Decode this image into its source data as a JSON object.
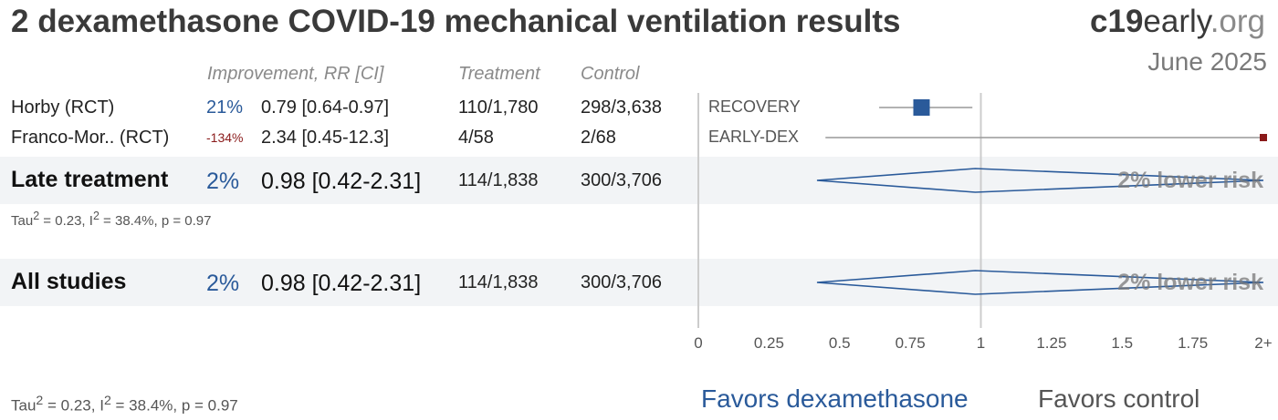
{
  "title": "2 dexamethasone COVID-19 mechanical ventilation results",
  "brand": {
    "bold": "c19",
    "middle": "early",
    "light": ".org"
  },
  "date": "June 2025",
  "headers": {
    "improvement": "Improvement, RR [CI]",
    "treatment": "Treatment",
    "control": "Control"
  },
  "studies": [
    {
      "name": "Horby (RCT)",
      "improvement": "21%",
      "rr_text": "0.79 [0.64-0.97]",
      "treatment": "110/1,780",
      "control": "298/3,638",
      "label": "RECOVERY",
      "rr": 0.79,
      "lo": 0.64,
      "hi": 0.97,
      "color": "#2a5a9a"
    },
    {
      "name": "Franco-Mor.. (RCT)",
      "improvement": "-134%",
      "rr_text": "2.34 [0.45-12.3]",
      "treatment": "4/58",
      "control": "2/68",
      "label": "EARLY-DEX",
      "rr": 2.34,
      "lo": 0.45,
      "hi": 12.3,
      "color": "#8a1a1a"
    }
  ],
  "late": {
    "name": "Late treatment",
    "improvement": "2%",
    "rr_text": "0.98 [0.42-2.31]",
    "treatment": "114/1,838",
    "control": "300/3,706",
    "stat_prefix": "Tau",
    "stat_mid": " = 0.23, I",
    "stat_suffix": " = 38.4%, p = 0.97",
    "risk": "2% lower risk",
    "rr": 0.98,
    "lo": 0.42,
    "hi": 2.31
  },
  "all": {
    "name": "All studies",
    "improvement": "2%",
    "rr_text": "0.98 [0.42-2.31]",
    "treatment": "114/1,838",
    "control": "300/3,706",
    "risk": "2% lower risk",
    "rr": 0.98,
    "lo": 0.42,
    "hi": 2.31
  },
  "bottom_stat": {
    "prefix": "Tau",
    "mid": " = 0.23, I",
    "suffix": " = 38.4%, p = 0.97"
  },
  "sup": "2",
  "axis": {
    "ticks": [
      "0",
      "0.25",
      "0.5",
      "0.75",
      "1",
      "1.25",
      "1.5",
      "1.75",
      "2+"
    ]
  },
  "favors": {
    "left": "Favors dexamethasone",
    "right": "Favors control"
  },
  "chart_data": {
    "type": "forest",
    "xlim": [
      0,
      2
    ],
    "xticks": [
      0,
      0.25,
      0.5,
      0.75,
      1,
      1.25,
      1.5,
      1.75,
      2
    ],
    "reference_line": 1,
    "studies": [
      {
        "name": "RECOVERY",
        "rr": 0.79,
        "ci": [
          0.64,
          0.97
        ]
      },
      {
        "name": "EARLY-DEX",
        "rr": 2.34,
        "ci": [
          0.45,
          12.3
        ]
      }
    ],
    "pooled": [
      {
        "name": "Late treatment",
        "rr": 0.98,
        "ci": [
          0.42,
          2.31
        ]
      },
      {
        "name": "All studies",
        "rr": 0.98,
        "ci": [
          0.42,
          2.31
        ]
      }
    ]
  }
}
